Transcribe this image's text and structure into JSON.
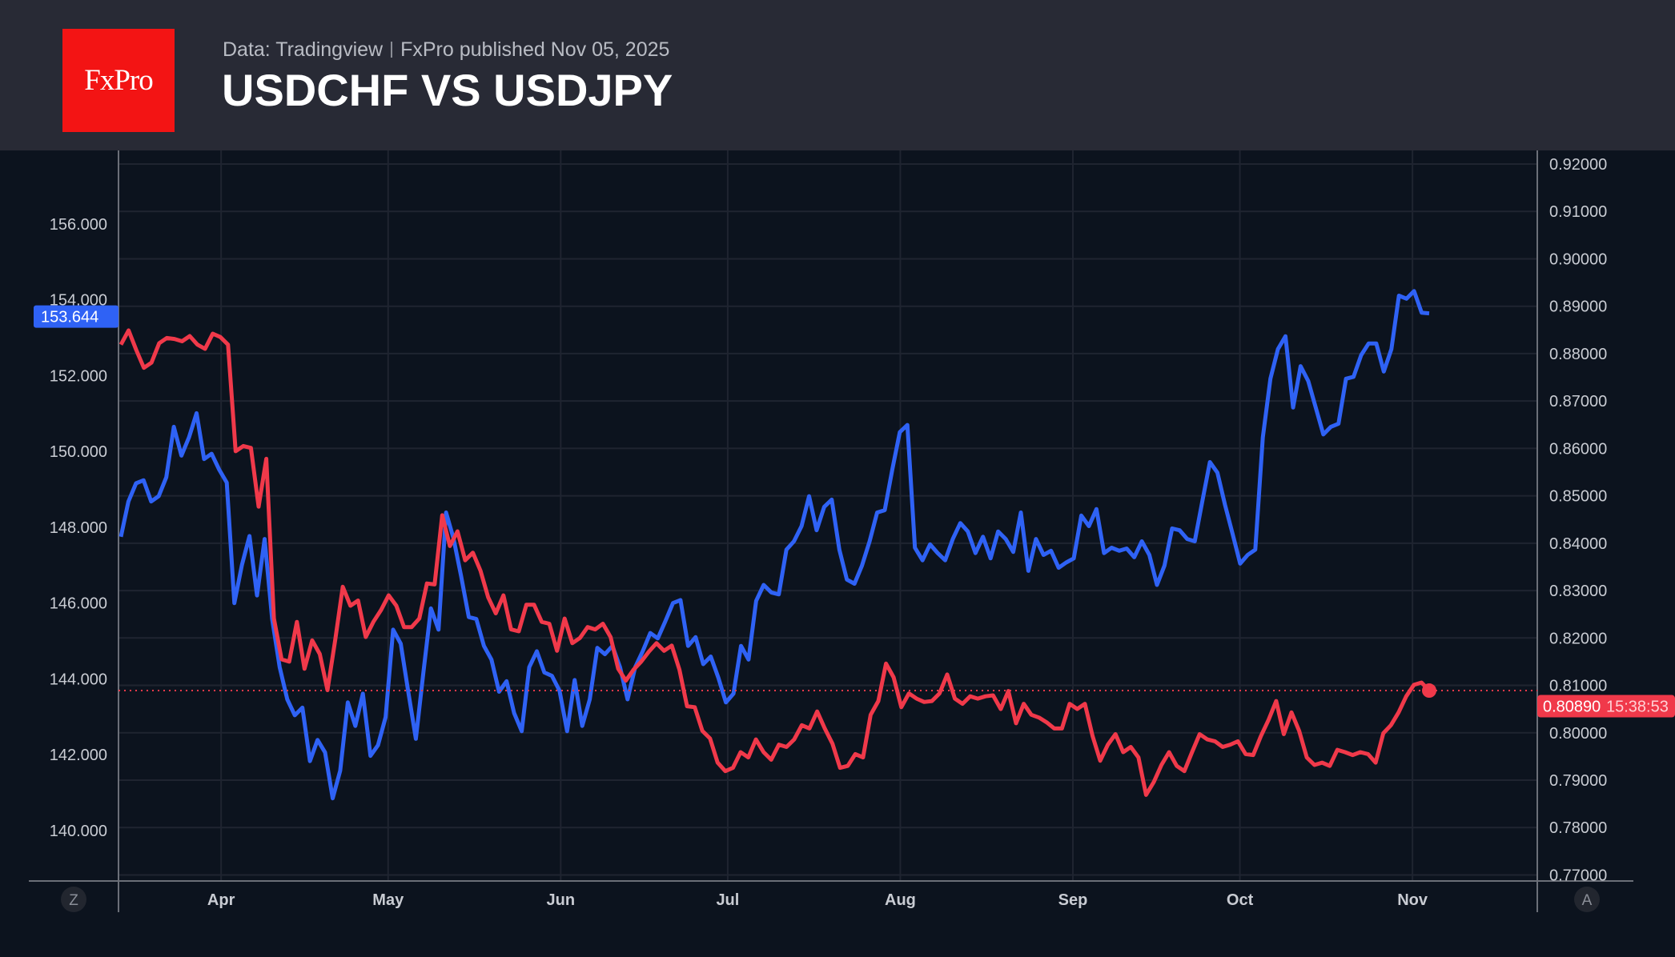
{
  "header": {
    "logo_text": "FxPro",
    "source": "Data: Tradingview",
    "published": "FxPro published Nov 05, 2025",
    "title": "USDCHF VS USDJPY"
  },
  "colors": {
    "usdjpy": "#2f62f5",
    "usdchf": "#f0394a",
    "background": "#0c131e",
    "header": "#282a35",
    "logo": "#f31414"
  },
  "axis_buttons": {
    "left": "Z",
    "right": "A"
  },
  "chart_data": {
    "type": "line",
    "title": "USDCHF VS USDJPY",
    "x_range": [
      "2025-03-14",
      "2025-11-04"
    ],
    "x_ticks": [
      {
        "label": "Apr",
        "date": "2025-04-01"
      },
      {
        "label": "May",
        "date": "2025-05-01"
      },
      {
        "label": "Jun",
        "date": "2025-06-01"
      },
      {
        "label": "Jul",
        "date": "2025-07-01"
      },
      {
        "label": "Aug",
        "date": "2025-08-01"
      },
      {
        "label": "Sep",
        "date": "2025-09-01"
      },
      {
        "label": "Oct",
        "date": "2025-10-01"
      },
      {
        "label": "Nov",
        "date": "2025-11-01"
      }
    ],
    "left_axis": {
      "ticks": [
        "140.000",
        "142.000",
        "144.000",
        "146.000",
        "148.000",
        "150.000",
        "152.000",
        "154.000",
        "156.000"
      ],
      "range": [
        138.5,
        158
      ]
    },
    "right_axis": {
      "ticks": [
        "0.77000",
        "0.78000",
        "0.79000",
        "0.80000",
        "0.81000",
        "0.82000",
        "0.83000",
        "0.84000",
        "0.85000",
        "0.86000",
        "0.87000",
        "0.88000",
        "0.89000",
        "0.90000",
        "0.91000",
        "0.92000"
      ],
      "range": [
        0.77,
        0.923
      ]
    },
    "grid": true,
    "series": [
      {
        "key": "usdjpy",
        "axis": "left",
        "last_label": "153.644",
        "values": [
          147.75,
          148.68,
          149.16,
          149.24,
          148.68,
          148.82,
          149.32,
          150.65,
          149.89,
          150.37,
          151.01,
          149.8,
          149.94,
          149.52,
          149.18,
          146.0,
          147.0,
          147.77,
          146.2,
          147.69,
          145.58,
          144.31,
          143.46,
          143.04,
          143.24,
          141.83,
          142.39,
          142.06,
          140.85,
          141.58,
          143.38,
          142.76,
          143.61,
          141.97,
          142.25,
          142.99,
          145.3,
          144.93,
          143.66,
          142.42,
          144.17,
          145.86,
          145.3,
          148.39,
          147.69,
          146.7,
          145.63,
          145.58,
          144.87,
          144.51,
          143.66,
          143.94,
          143.1,
          142.62,
          144.31,
          144.73,
          144.17,
          144.08,
          143.69,
          142.62,
          143.97,
          142.76,
          143.46,
          144.82,
          144.65,
          144.87,
          144.31,
          143.46,
          144.31,
          144.73,
          145.21,
          145.07,
          145.52,
          146.0,
          146.08,
          144.87,
          145.1,
          144.39,
          144.59,
          144.03,
          143.38,
          143.61,
          144.87,
          144.51,
          146.06,
          146.48,
          146.28,
          146.23,
          147.41,
          147.63,
          148.03,
          148.82,
          147.92,
          148.54,
          148.73,
          147.41,
          146.62,
          146.51,
          146.99,
          147.63,
          148.39,
          148.45,
          149.52,
          150.51,
          150.7,
          147.46,
          147.13,
          147.55,
          147.32,
          147.13,
          147.69,
          148.11,
          147.89,
          147.32,
          147.75,
          147.18,
          147.89,
          147.69,
          147.35,
          148.39,
          146.85,
          147.69,
          147.27,
          147.38,
          146.93,
          147.07,
          147.18,
          148.31,
          148.03,
          148.48,
          147.32,
          147.46,
          147.38,
          147.44,
          147.21,
          147.63,
          147.27,
          146.48,
          146.99,
          147.97,
          147.92,
          147.69,
          147.63,
          148.68,
          149.72,
          149.44,
          148.59,
          147.83,
          147.04,
          147.27,
          147.41,
          150.37,
          151.92,
          152.7,
          153.04,
          151.16,
          152.25,
          151.86,
          151.16,
          150.45,
          150.65,
          150.73,
          151.92,
          151.97,
          152.54,
          152.85,
          152.85,
          152.11,
          152.7,
          154.11,
          154.03,
          154.23,
          153.66,
          153.644
        ]
      },
      {
        "key": "usdchf",
        "axis": "right",
        "last_label": "0.80890",
        "countdown": "15:38:53",
        "values": [
          0.8819,
          0.8849,
          0.8808,
          0.877,
          0.8781,
          0.8822,
          0.8833,
          0.8831,
          0.8826,
          0.8837,
          0.8819,
          0.881,
          0.8842,
          0.8835,
          0.8819,
          0.8594,
          0.8605,
          0.8601,
          0.8477,
          0.8578,
          0.8241,
          0.8155,
          0.815,
          0.8234,
          0.8135,
          0.8195,
          0.8166,
          0.809,
          0.8195,
          0.8308,
          0.8268,
          0.8279,
          0.8202,
          0.8234,
          0.8259,
          0.829,
          0.8268,
          0.8223,
          0.8223,
          0.8241,
          0.8315,
          0.8313,
          0.8459,
          0.8394,
          0.8425,
          0.8364,
          0.838,
          0.8342,
          0.8286,
          0.8252,
          0.829,
          0.8218,
          0.8214,
          0.827,
          0.827,
          0.8234,
          0.823,
          0.8173,
          0.8241,
          0.8189,
          0.82,
          0.8223,
          0.8218,
          0.823,
          0.8202,
          0.8135,
          0.811,
          0.8133,
          0.815,
          0.8171,
          0.8189,
          0.8173,
          0.8184,
          0.8133,
          0.8056,
          0.8054,
          0.8004,
          0.7988,
          0.7937,
          0.7919,
          0.7926,
          0.7959,
          0.7948,
          0.7986,
          0.7959,
          0.7943,
          0.7975,
          0.797,
          0.7986,
          0.8016,
          0.8009,
          0.8045,
          0.8009,
          0.7977,
          0.7926,
          0.793,
          0.7955,
          0.7948,
          0.8038,
          0.8067,
          0.8146,
          0.8117,
          0.8054,
          0.8083,
          0.8072,
          0.8065,
          0.8067,
          0.8083,
          0.8123,
          0.8072,
          0.8061,
          0.8077,
          0.8072,
          0.8077,
          0.8079,
          0.805,
          0.8088,
          0.802,
          0.8061,
          0.8038,
          0.8032,
          0.8022,
          0.8009,
          0.8009,
          0.8061,
          0.805,
          0.8061,
          0.7993,
          0.7941,
          0.7975,
          0.7997,
          0.7959,
          0.797,
          0.7948,
          0.7869,
          0.7896,
          0.7932,
          0.7959,
          0.793,
          0.7919,
          0.7959,
          0.7997,
          0.7986,
          0.7982,
          0.797,
          0.7975,
          0.7982,
          0.7955,
          0.7953,
          0.7993,
          0.8027,
          0.8067,
          0.7997,
          0.8043,
          0.8004,
          0.7948,
          0.7932,
          0.7937,
          0.793,
          0.7964,
          0.7959,
          0.7953,
          0.7959,
          0.7955,
          0.7937,
          0.7999,
          0.8016,
          0.8043,
          0.8077,
          0.8101,
          0.8106,
          0.8089
        ]
      }
    ]
  }
}
